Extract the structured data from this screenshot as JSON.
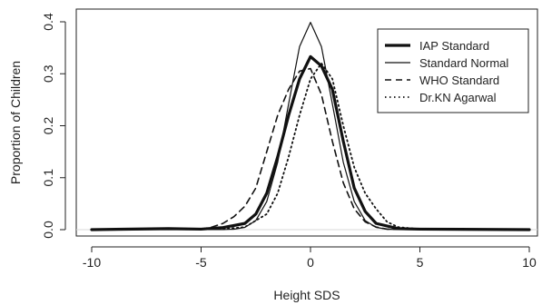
{
  "chart_data": {
    "type": "line",
    "xlabel": "Height SDS",
    "ylabel": "Proportion of Children",
    "xlim": [
      -10,
      10
    ],
    "ylim": [
      0,
      0.4
    ],
    "x_ticks": [
      -10,
      -5,
      0,
      5,
      10
    ],
    "y_ticks": [
      0.0,
      0.1,
      0.2,
      0.3,
      0.4
    ],
    "x_tick_labels": [
      "-10",
      "-5",
      "0",
      "5",
      "10"
    ],
    "y_tick_labels": [
      "0.0",
      "0.1",
      "0.2",
      "0.3",
      "0.4"
    ],
    "grid": false,
    "legend_position": "top-right",
    "series": [
      {
        "name": "IAP Standard",
        "line_style": "solid-thick",
        "x": [
          -10,
          -6.5,
          -5,
          -4,
          -3,
          -2.5,
          -2,
          -1.5,
          -1,
          -0.5,
          0,
          0.5,
          1,
          1.5,
          2,
          2.5,
          3,
          4,
          5,
          10
        ],
        "y": [
          0,
          0.002,
          0.001,
          0.004,
          0.012,
          0.03,
          0.07,
          0.14,
          0.22,
          0.29,
          0.333,
          0.315,
          0.27,
          0.17,
          0.08,
          0.035,
          0.012,
          0.002,
          0.001,
          0
        ]
      },
      {
        "name": "Standard Normal",
        "line_style": "solid-thin",
        "x": [
          -10,
          -4,
          -3.5,
          -3,
          -2.5,
          -2,
          -1.5,
          -1,
          -0.5,
          0,
          0.5,
          1,
          1.5,
          2,
          2.5,
          3,
          3.5,
          4,
          10
        ],
        "y": [
          0,
          0.0001,
          0.0009,
          0.0044,
          0.0175,
          0.054,
          0.1295,
          0.242,
          0.3521,
          0.3989,
          0.3521,
          0.242,
          0.1295,
          0.054,
          0.0175,
          0.0044,
          0.0009,
          0.0001,
          0
        ]
      },
      {
        "name": "WHO Standard",
        "line_style": "dashed",
        "x": [
          -10,
          -5,
          -4.5,
          -4,
          -3.5,
          -3,
          -2.5,
          -2,
          -1.5,
          -1,
          -0.5,
          0,
          0.5,
          1,
          1.5,
          2,
          2.5,
          3,
          3.5,
          10
        ],
        "y": [
          0,
          0.001,
          0.005,
          0.012,
          0.025,
          0.045,
          0.08,
          0.15,
          0.22,
          0.27,
          0.305,
          0.31,
          0.26,
          0.17,
          0.09,
          0.04,
          0.015,
          0.005,
          0.001,
          0
        ]
      },
      {
        "name": "Dr.KN Agarwal",
        "line_style": "dotted",
        "x": [
          -10,
          -8.5,
          -4,
          -3,
          -2,
          -1.5,
          -1,
          -0.5,
          0,
          0.5,
          1,
          1.5,
          2,
          2.5,
          3,
          3.5,
          4,
          5,
          10
        ],
        "y": [
          0,
          0.001,
          0.001,
          0.005,
          0.03,
          0.07,
          0.14,
          0.22,
          0.29,
          0.32,
          0.29,
          0.2,
          0.12,
          0.07,
          0.04,
          0.015,
          0.005,
          0.001,
          0
        ]
      }
    ]
  }
}
